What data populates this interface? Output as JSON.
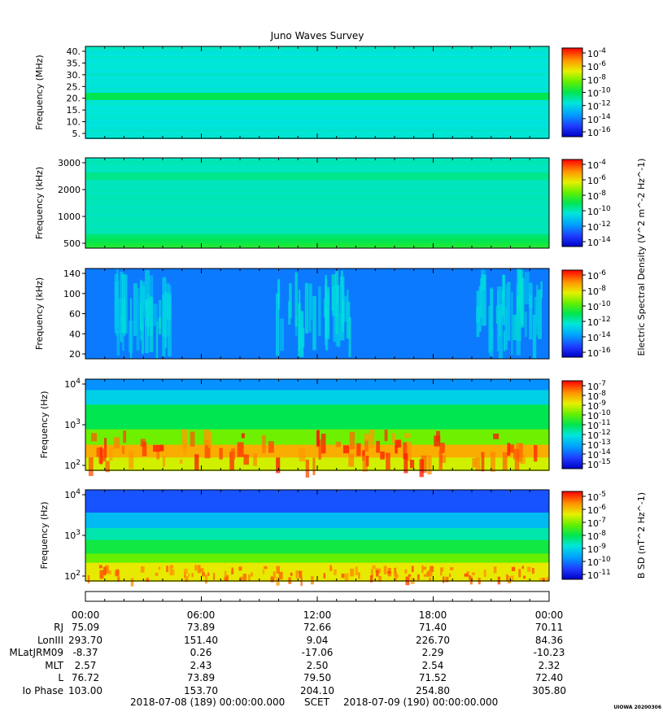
{
  "title": "Juno Waves Survey",
  "colors": {
    "background": "#ffffff",
    "axis": "#000000",
    "panel_fill": "#2f7df5"
  },
  "chart_data": [
    {
      "type": "heatmap",
      "ylabel": "Frequency (MHz)",
      "yticks": [
        "40.",
        "35.",
        "30.",
        "25.",
        "20.",
        "15.",
        "10.",
        "5."
      ],
      "ylim": [
        3.5,
        41
      ],
      "colorbar_ticks": [
        "10^-4",
        "10^-6",
        "10^-8",
        "10^-10",
        "10^-12",
        "10^-14",
        "10^-16"
      ],
      "colorbar_range": [
        -17,
        -4
      ],
      "colorbar_label": "",
      "features": [
        "uniform background near 10^-13",
        "brighter band near 21 MHz"
      ]
    },
    {
      "type": "heatmap",
      "ylabel": "Frequency (kHz)",
      "yticks": [
        "3000",
        "2000",
        "1000",
        "500"
      ],
      "ylim": [
        140,
        3000
      ],
      "scale": "log",
      "colorbar_ticks": [
        "10^-4",
        "10^-6",
        "10^-8",
        "10^-10",
        "10^-12",
        "10^-14"
      ],
      "colorbar_range": [
        -15,
        -3.5
      ],
      "colorbar_label": "Electric Spectral Density (V^2 m^-2 Hz^-1)",
      "features": [
        "band near 1700 kHz",
        "enhanced intensity at lowest frequencies"
      ]
    },
    {
      "type": "heatmap",
      "ylabel": "Frequency (kHz)",
      "yticks": [
        "140",
        "100",
        "60",
        "40",
        "20"
      ],
      "ylim": [
        20,
        140
      ],
      "colorbar_ticks": [
        "10^-6",
        "10^-8",
        "10^-10",
        "10^-12",
        "10^-14",
        "10^-16"
      ],
      "colorbar_range": [
        -17,
        -5.5
      ],
      "features": [
        "emission arcs near 02:00-04:00",
        "emission arcs near 10:00-13:00",
        "emission arcs near 20:00-24:00"
      ]
    },
    {
      "type": "heatmap",
      "ylabel": "Frequency (Hz)",
      "yticks": [
        "10^4",
        "10^3",
        "10^2"
      ],
      "ylim": [
        70,
        20000
      ],
      "scale": "log",
      "colorbar_ticks": [
        "10^-7",
        "10^-8",
        "10^-9",
        "10^-10",
        "10^-11",
        "10^-12",
        "10^-13",
        "10^-14",
        "10^-15"
      ],
      "colorbar_range": [
        -15,
        -7
      ],
      "features": [
        "intense emission band 100-400 Hz throughout day",
        "upper cutoff near 3000-6000 Hz"
      ]
    },
    {
      "type": "heatmap",
      "ylabel": "Frequency (Hz)",
      "yticks": [
        "10^4",
        "10^3",
        "10^2"
      ],
      "ylim": [
        50,
        20000
      ],
      "scale": "log",
      "colorbar_ticks": [
        "10^-5",
        "10^-6",
        "10^-7",
        "10^-8",
        "10^-9",
        "10^-10",
        "10^-11"
      ],
      "colorbar_range": [
        -11,
        -4.5
      ],
      "colorbar_label": "B SD (nT^2 Hz^-1)",
      "features": [
        "magnetic intensity increasing toward lower frequencies"
      ]
    }
  ],
  "x_axis": {
    "ticks": [
      "00:00",
      "06:00",
      "12:00",
      "18:00",
      "00:00"
    ],
    "ephemeris": [
      {
        "label": "RJ",
        "values": [
          "75.09",
          "73.89",
          "72.66",
          "71.40",
          "70.11"
        ]
      },
      {
        "label": "LonIII",
        "values": [
          "293.70",
          "151.40",
          "9.04",
          "226.70",
          "84.36"
        ]
      },
      {
        "label": "MLatJRM09",
        "values": [
          "-8.37",
          "0.26",
          "-17.06",
          "2.29",
          "-10.23"
        ]
      },
      {
        "label": "MLT",
        "values": [
          "2.57",
          "2.43",
          "2.50",
          "2.54",
          "2.32"
        ]
      },
      {
        "label": "L",
        "values": [
          "76.72",
          "73.89",
          "79.50",
          "71.52",
          "72.40"
        ]
      },
      {
        "label": "Io Phase",
        "values": [
          "103.00",
          "153.70",
          "204.10",
          "254.80",
          "305.80"
        ]
      }
    ]
  },
  "footer": {
    "start": "2018-07-08 (189) 00:00:00.000",
    "scet": "SCET",
    "end": "2018-07-09 (190) 00:00:00.000"
  },
  "credit": "UIOWA 20200306"
}
